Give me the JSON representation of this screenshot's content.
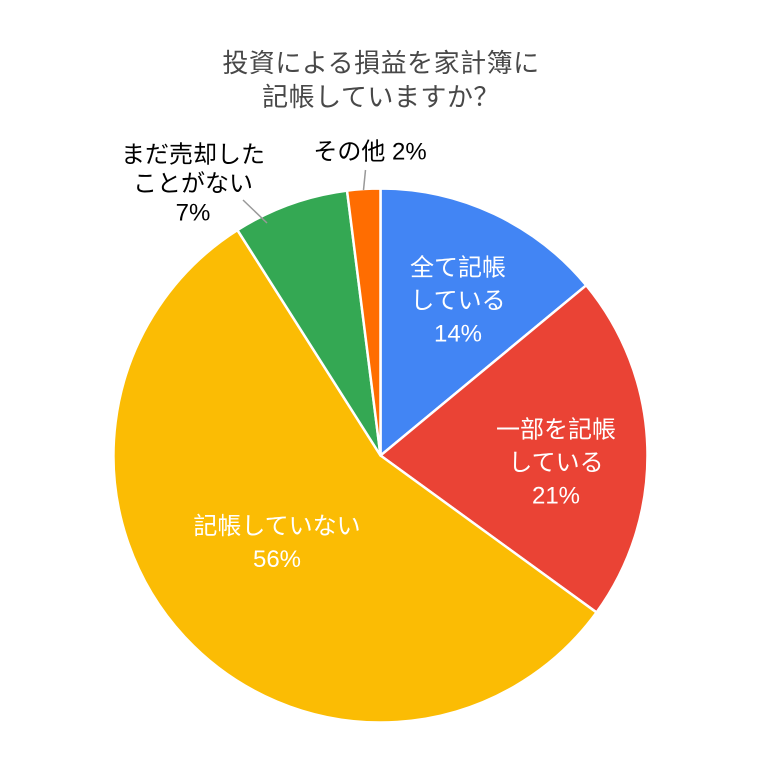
{
  "title": {
    "lines": [
      "投資による損益を家計簿に",
      "記帳していますか？"
    ]
  },
  "chart_data": {
    "type": "pie",
    "title": "投資による損益を家計簿に記帳していますか？",
    "legend_position": "none",
    "labels_on_slices": true,
    "unit": "%",
    "start_angle_deg": 0,
    "direction": "clockwise",
    "background_color": "#FFFFFF",
    "title_color": "#484848",
    "inside_label_color": "#FFFFFF",
    "outside_label_color": "#000000",
    "leader_line_color": "#999999",
    "slice_border_color": "#FFFFFF",
    "slices": [
      {
        "label": "全て記帳している",
        "percent": 14,
        "color": "#4285F4",
        "label_position": "inside",
        "label_lines": [
          "全て記帳",
          "している",
          "14%"
        ]
      },
      {
        "label": "一部を記帳している",
        "percent": 21,
        "color": "#EA4335",
        "label_position": "inside",
        "label_lines": [
          "一部を記帳",
          "している",
          "21%"
        ]
      },
      {
        "label": "記帳していない",
        "percent": 56,
        "color": "#FBBC04",
        "label_position": "inside",
        "label_lines": [
          "記帳していない",
          "56%"
        ]
      },
      {
        "label": "まだ売却したことがない",
        "percent": 7,
        "color": "#34A853",
        "label_position": "outside",
        "label_lines": [
          "まだ売却した",
          "ことがない",
          "7%"
        ]
      },
      {
        "label": "その他",
        "percent": 2,
        "color": "#FF6D01",
        "label_position": "outside",
        "label_lines": [
          "その他 2%"
        ]
      }
    ]
  }
}
